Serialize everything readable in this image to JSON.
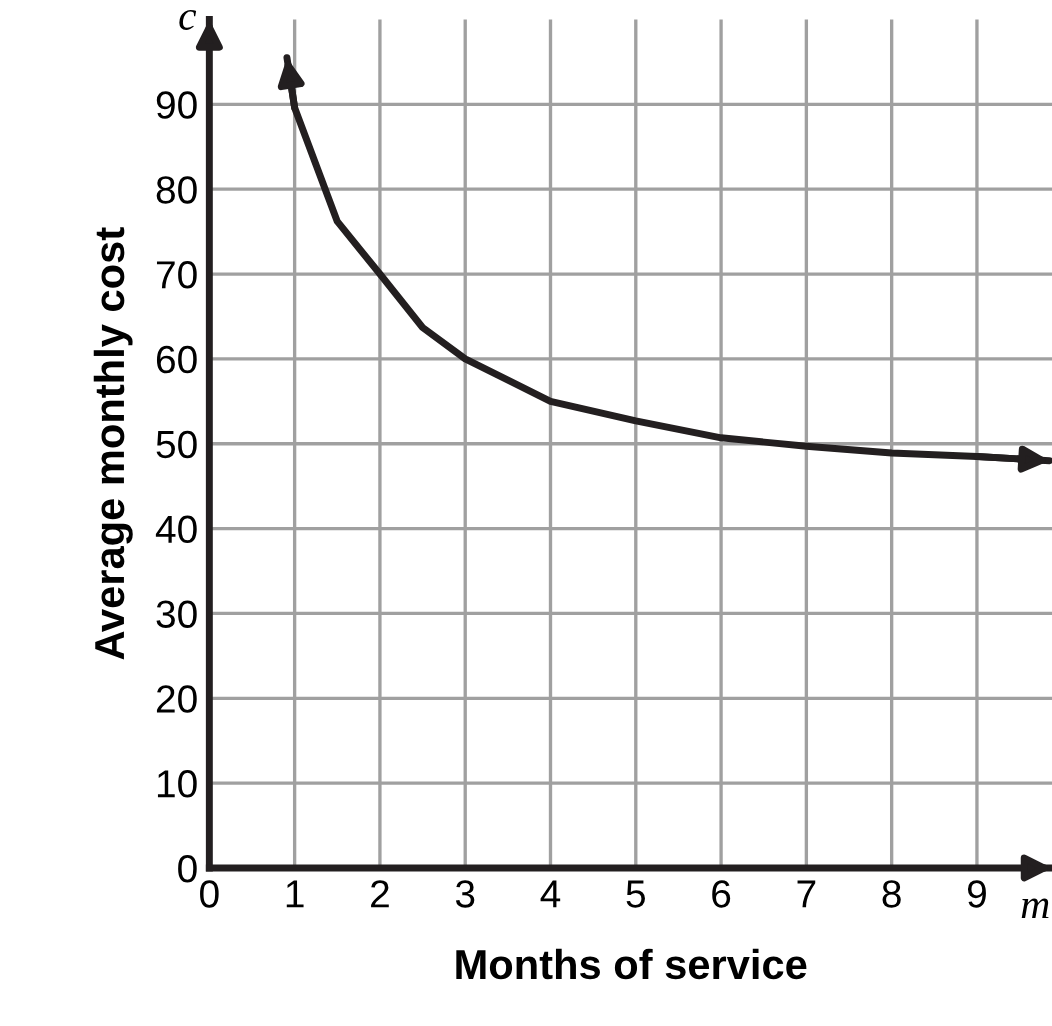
{
  "chart_data": {
    "type": "line",
    "xlabel": "Months of service",
    "ylabel": "Average monthly cost",
    "annotations": [
      "c",
      "m"
    ],
    "series": [
      {
        "color": "#231f20",
        "x": [
          0.91,
          1,
          1.5,
          2,
          2.5,
          3,
          4,
          5,
          6,
          7,
          8,
          9,
          9.85
        ],
        "values": [
          95.5,
          89.6,
          76.2,
          70,
          63.7,
          60,
          55,
          52.7,
          50.7,
          49.7,
          48.9,
          48.5,
          48
        ]
      }
    ],
    "xlim": [
      0,
      9.88
    ],
    "ylim": [
      0,
      100
    ],
    "xticks": [
      0,
      1,
      2,
      3,
      4,
      5,
      6,
      7,
      8,
      9
    ],
    "yticks": [
      0,
      10,
      20,
      30,
      40,
      50,
      60,
      70,
      80,
      90
    ],
    "grid": true,
    "marker": "none",
    "line_style": "solid",
    "legend": false
  }
}
